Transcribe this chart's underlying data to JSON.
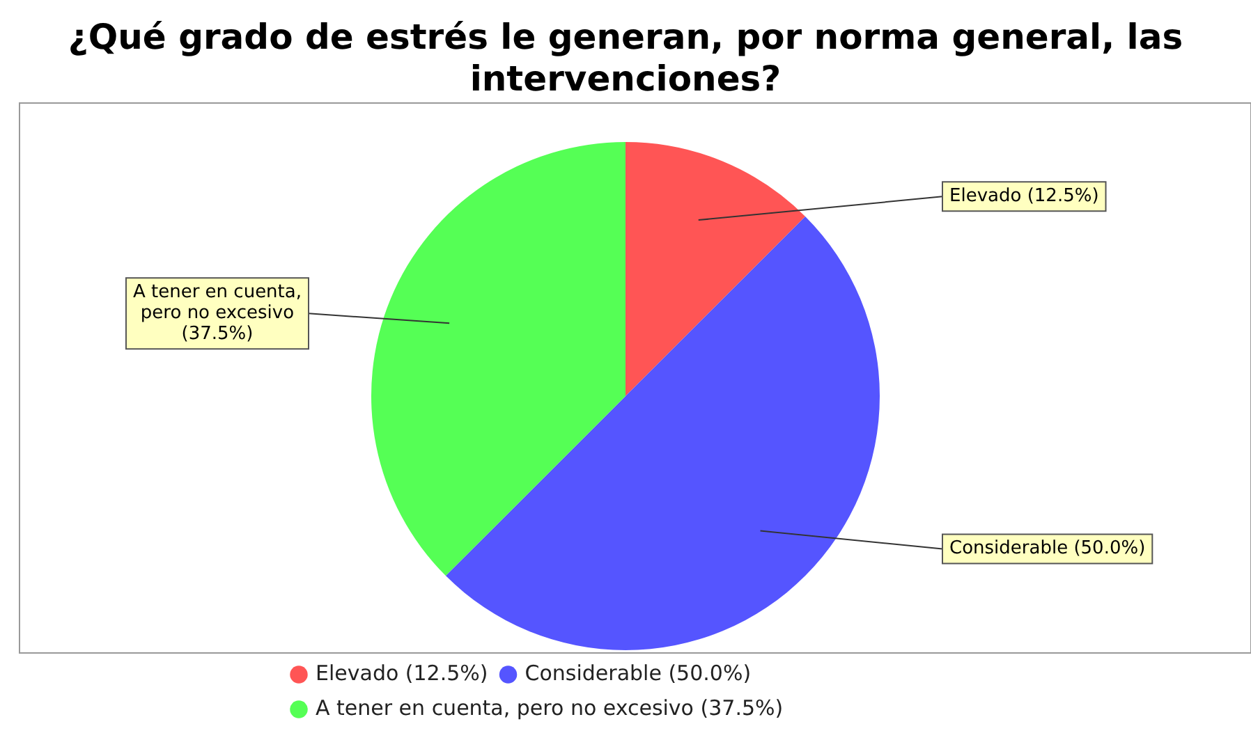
{
  "chart_data": {
    "type": "pie",
    "title": "¿Qué grado de estrés le generan, por norma general, las intervenciones?",
    "categories": [
      "Elevado (12.5%)",
      "Considerable (50.0%)",
      "A tener en cuenta, pero no excesivo (37.5%)"
    ],
    "values": [
      12.5,
      50.0,
      37.5
    ],
    "colors": [
      "#ff5555",
      "#5555ff",
      "#55ff55"
    ],
    "legend": "bottom left"
  }
}
